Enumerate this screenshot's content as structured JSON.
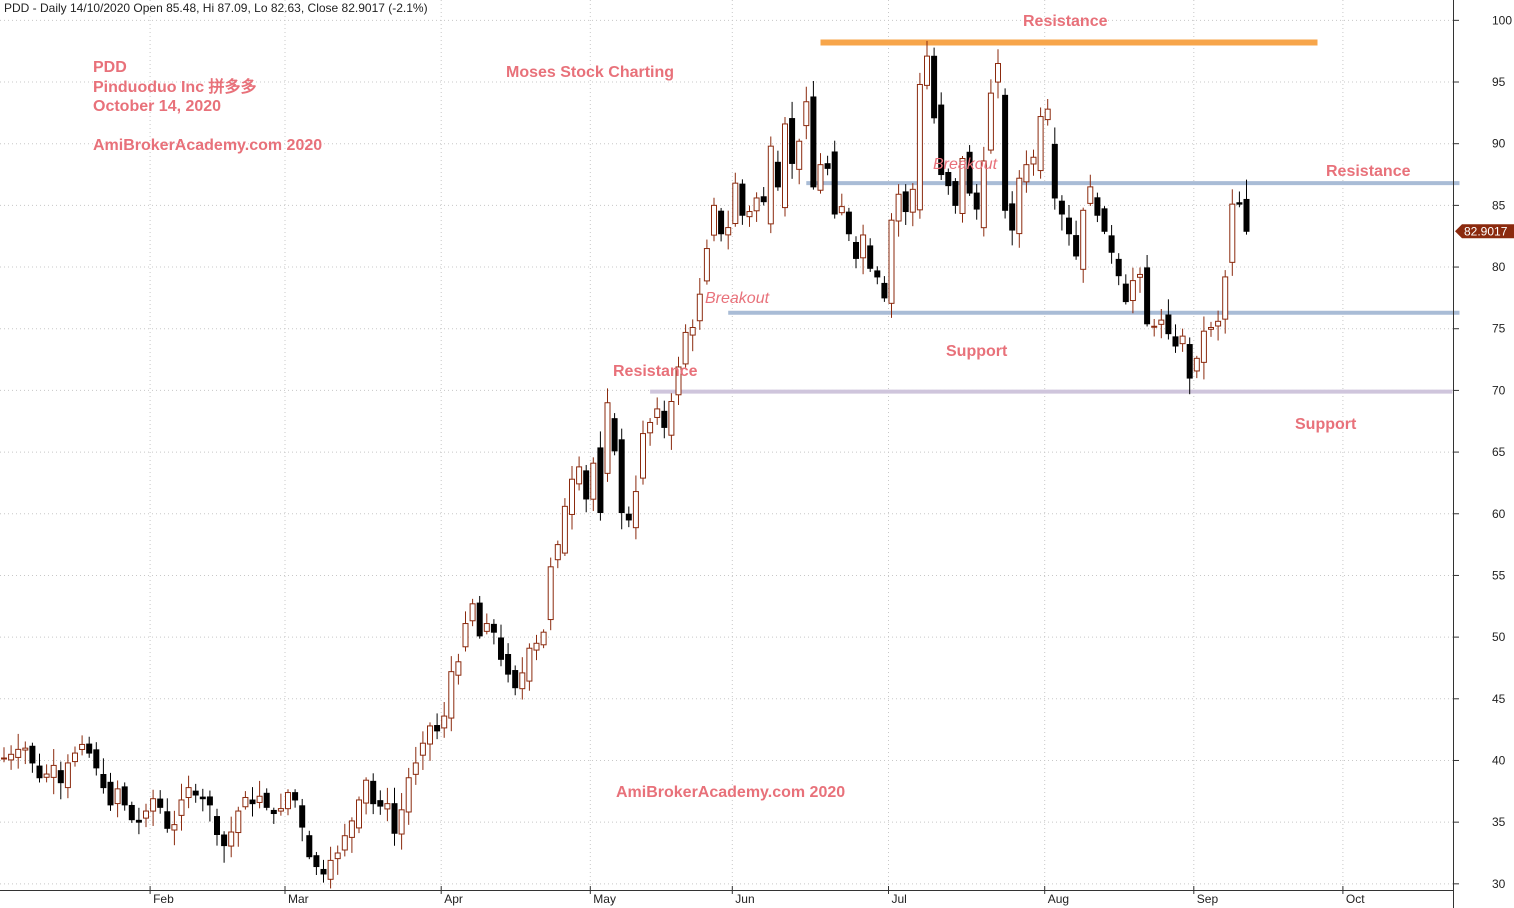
{
  "header": "PDD - Daily 14/10/2020 Open 85.48, Hi 87.09, Lo 82.63, Close 82.9017 (-2.1%)",
  "info": {
    "ticker": "PDD",
    "company": "Pinduoduo Inc  拼多多",
    "date": "October 14, 2020",
    "site": "AmiBrokerAcademy.com  2020",
    "brand": "Moses Stock Charting",
    "watermark": "AmiBrokerAcademy.com  2020"
  },
  "last_price_label": "82.9017",
  "colors": {
    "up": "#8b2a0e",
    "down": "#000000",
    "annotation": "#e8717a",
    "resistance_top": "#f7a54a",
    "level_blue": "#a9bcd6",
    "level_purple": "#cfc5dc",
    "price_tag": "#8b2a0e",
    "grid": "#c8c8c8"
  },
  "annotations": {
    "resistance_top": "Resistance",
    "breakout_upper": "Breakout",
    "resistance_right": "Resistance",
    "breakout_lower": "Breakout",
    "support_mid": "Support",
    "resistance_mid": "Resistance",
    "support_right": "Support"
  },
  "chart_data": {
    "type": "candlestick",
    "period": "Daily",
    "ylim": [
      29.5,
      101
    ],
    "y_ticks": [
      30,
      35,
      40,
      45,
      50,
      55,
      60,
      65,
      70,
      75,
      80,
      85,
      90,
      95,
      100
    ],
    "x_ticks": [
      "Feb",
      "Mar",
      "Apr",
      "May",
      "Jun",
      "Jul",
      "Aug",
      "Sep",
      "Oct"
    ],
    "grid": true,
    "levels": [
      {
        "name": "resistance-top",
        "value": 98.2,
        "color": "#f7a54a",
        "from": "2020-06-17",
        "to": "2020-09-25"
      },
      {
        "name": "resistance-upper",
        "value": 86.8,
        "color": "#a9bcd6",
        "from": "2020-06-15",
        "to": "2020-10-23"
      },
      {
        "name": "support-mid",
        "value": 76.3,
        "color": "#a9bcd6",
        "from": "2020-05-29",
        "to": "2020-10-23"
      },
      {
        "name": "support-low",
        "value": 69.9,
        "color": "#cfc5dc",
        "from": "2020-05-13",
        "to": "2020-10-22"
      }
    ],
    "closes": [
      40.2,
      40.5,
      40.9,
      41.0,
      39.8,
      38.6,
      38.9,
      39.6,
      38.2,
      39.8,
      40.6,
      41.3,
      40.6,
      39.4,
      37.8,
      36.4,
      37.7,
      36.4,
      35.2,
      35.0,
      35.9,
      36.9,
      36.2,
      34.5,
      34.8,
      36.8,
      37.8,
      37.2,
      36.9,
      36.4,
      34.0,
      33.1,
      34.2,
      35.9,
      37.0,
      36.5,
      37.1,
      36.2,
      35.7,
      36.1,
      37.4,
      36.8,
      34.6,
      32.2,
      31.4,
      30.8,
      31.9,
      32.5,
      33.9,
      35.1,
      36.8,
      38.4,
      36.5,
      36.3,
      36.5,
      34.1,
      36.0,
      38.6,
      39.8,
      41.4,
      42.8,
      42.4,
      43.6,
      47.2,
      48.0,
      51.1,
      52.7,
      50.1,
      51.1,
      50.4,
      48.2,
      47.0,
      45.9,
      47.1,
      49.1,
      49.5,
      50.4,
      55.7,
      57.5,
      60.6,
      62.8,
      63.8,
      61.2,
      64.1,
      60.1,
      69.0,
      65.1,
      60.1,
      59.5,
      61.8,
      66.5,
      67.4,
      68.5,
      67.0,
      69.1,
      71.9,
      74.7,
      75.1,
      77.8,
      81.5,
      85.0,
      82.7,
      83.2,
      86.8,
      84.2,
      84.5,
      85.6,
      85.3,
      89.8,
      86.5,
      91.6,
      88.4,
      90.2,
      93.4,
      86.5,
      88.3,
      88.0,
      84.3,
      84.9,
      82.7,
      80.7,
      82.6,
      79.9,
      79.2,
      77.5,
      83.8,
      85.9,
      84.5,
      86.3,
      94.8,
      97.1,
      92.1,
      87.5,
      86.6,
      85.0,
      88.8,
      86.0,
      84.7,
      88.6,
      94.1,
      96.5,
      84.6,
      83.0,
      87.2,
      88.3,
      88.9,
      92.2,
      92.8,
      85.6,
      84.3,
      82.7,
      80.9,
      84.6,
      86.5,
      84.2,
      82.9,
      81.2,
      79.3,
      77.2,
      78.9,
      79.4,
      75.4,
      75.2,
      75.7,
      74.6,
      73.6,
      74.4,
      71.0,
      72.6,
      74.8,
      75.1,
      75.6,
      79.2,
      85.1,
      85.1,
      82.9
    ]
  }
}
